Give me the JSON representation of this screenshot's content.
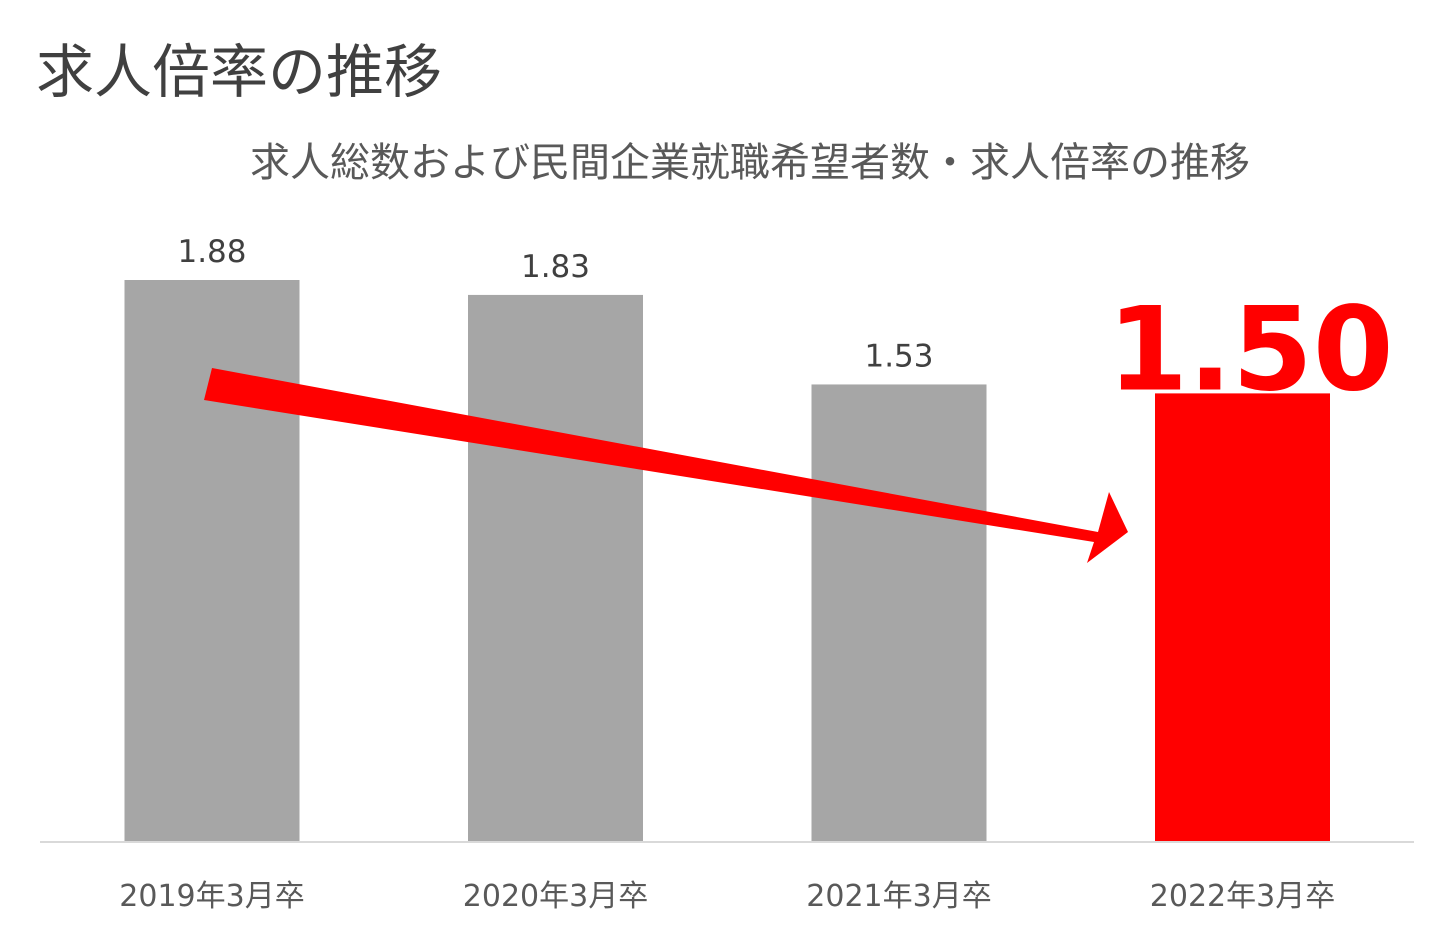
{
  "page": {
    "title": "求人倍率の推移"
  },
  "chart_data": {
    "type": "bar",
    "title": "求人総数および民間企業就職希望者数・求人倍率の推移",
    "categories": [
      "2019年3月卒",
      "2020年3月卒",
      "2021年3月卒",
      "2022年3月卒"
    ],
    "values": [
      1.88,
      1.83,
      1.53,
      1.5
    ],
    "value_labels": [
      "1.88",
      "1.83",
      "1.53",
      "1.50"
    ],
    "highlight_index": 3,
    "ylim": [
      0,
      1.88
    ],
    "xlabel": "",
    "ylabel": "",
    "grid": false,
    "colors": {
      "bar": "#a6a6a6",
      "highlight": "#ff0000",
      "label": "#404040",
      "tick": "#595959",
      "baseline": "#d9d9d9",
      "arrow": "#ff0000"
    },
    "annotation": "downward-trend-arrow"
  }
}
